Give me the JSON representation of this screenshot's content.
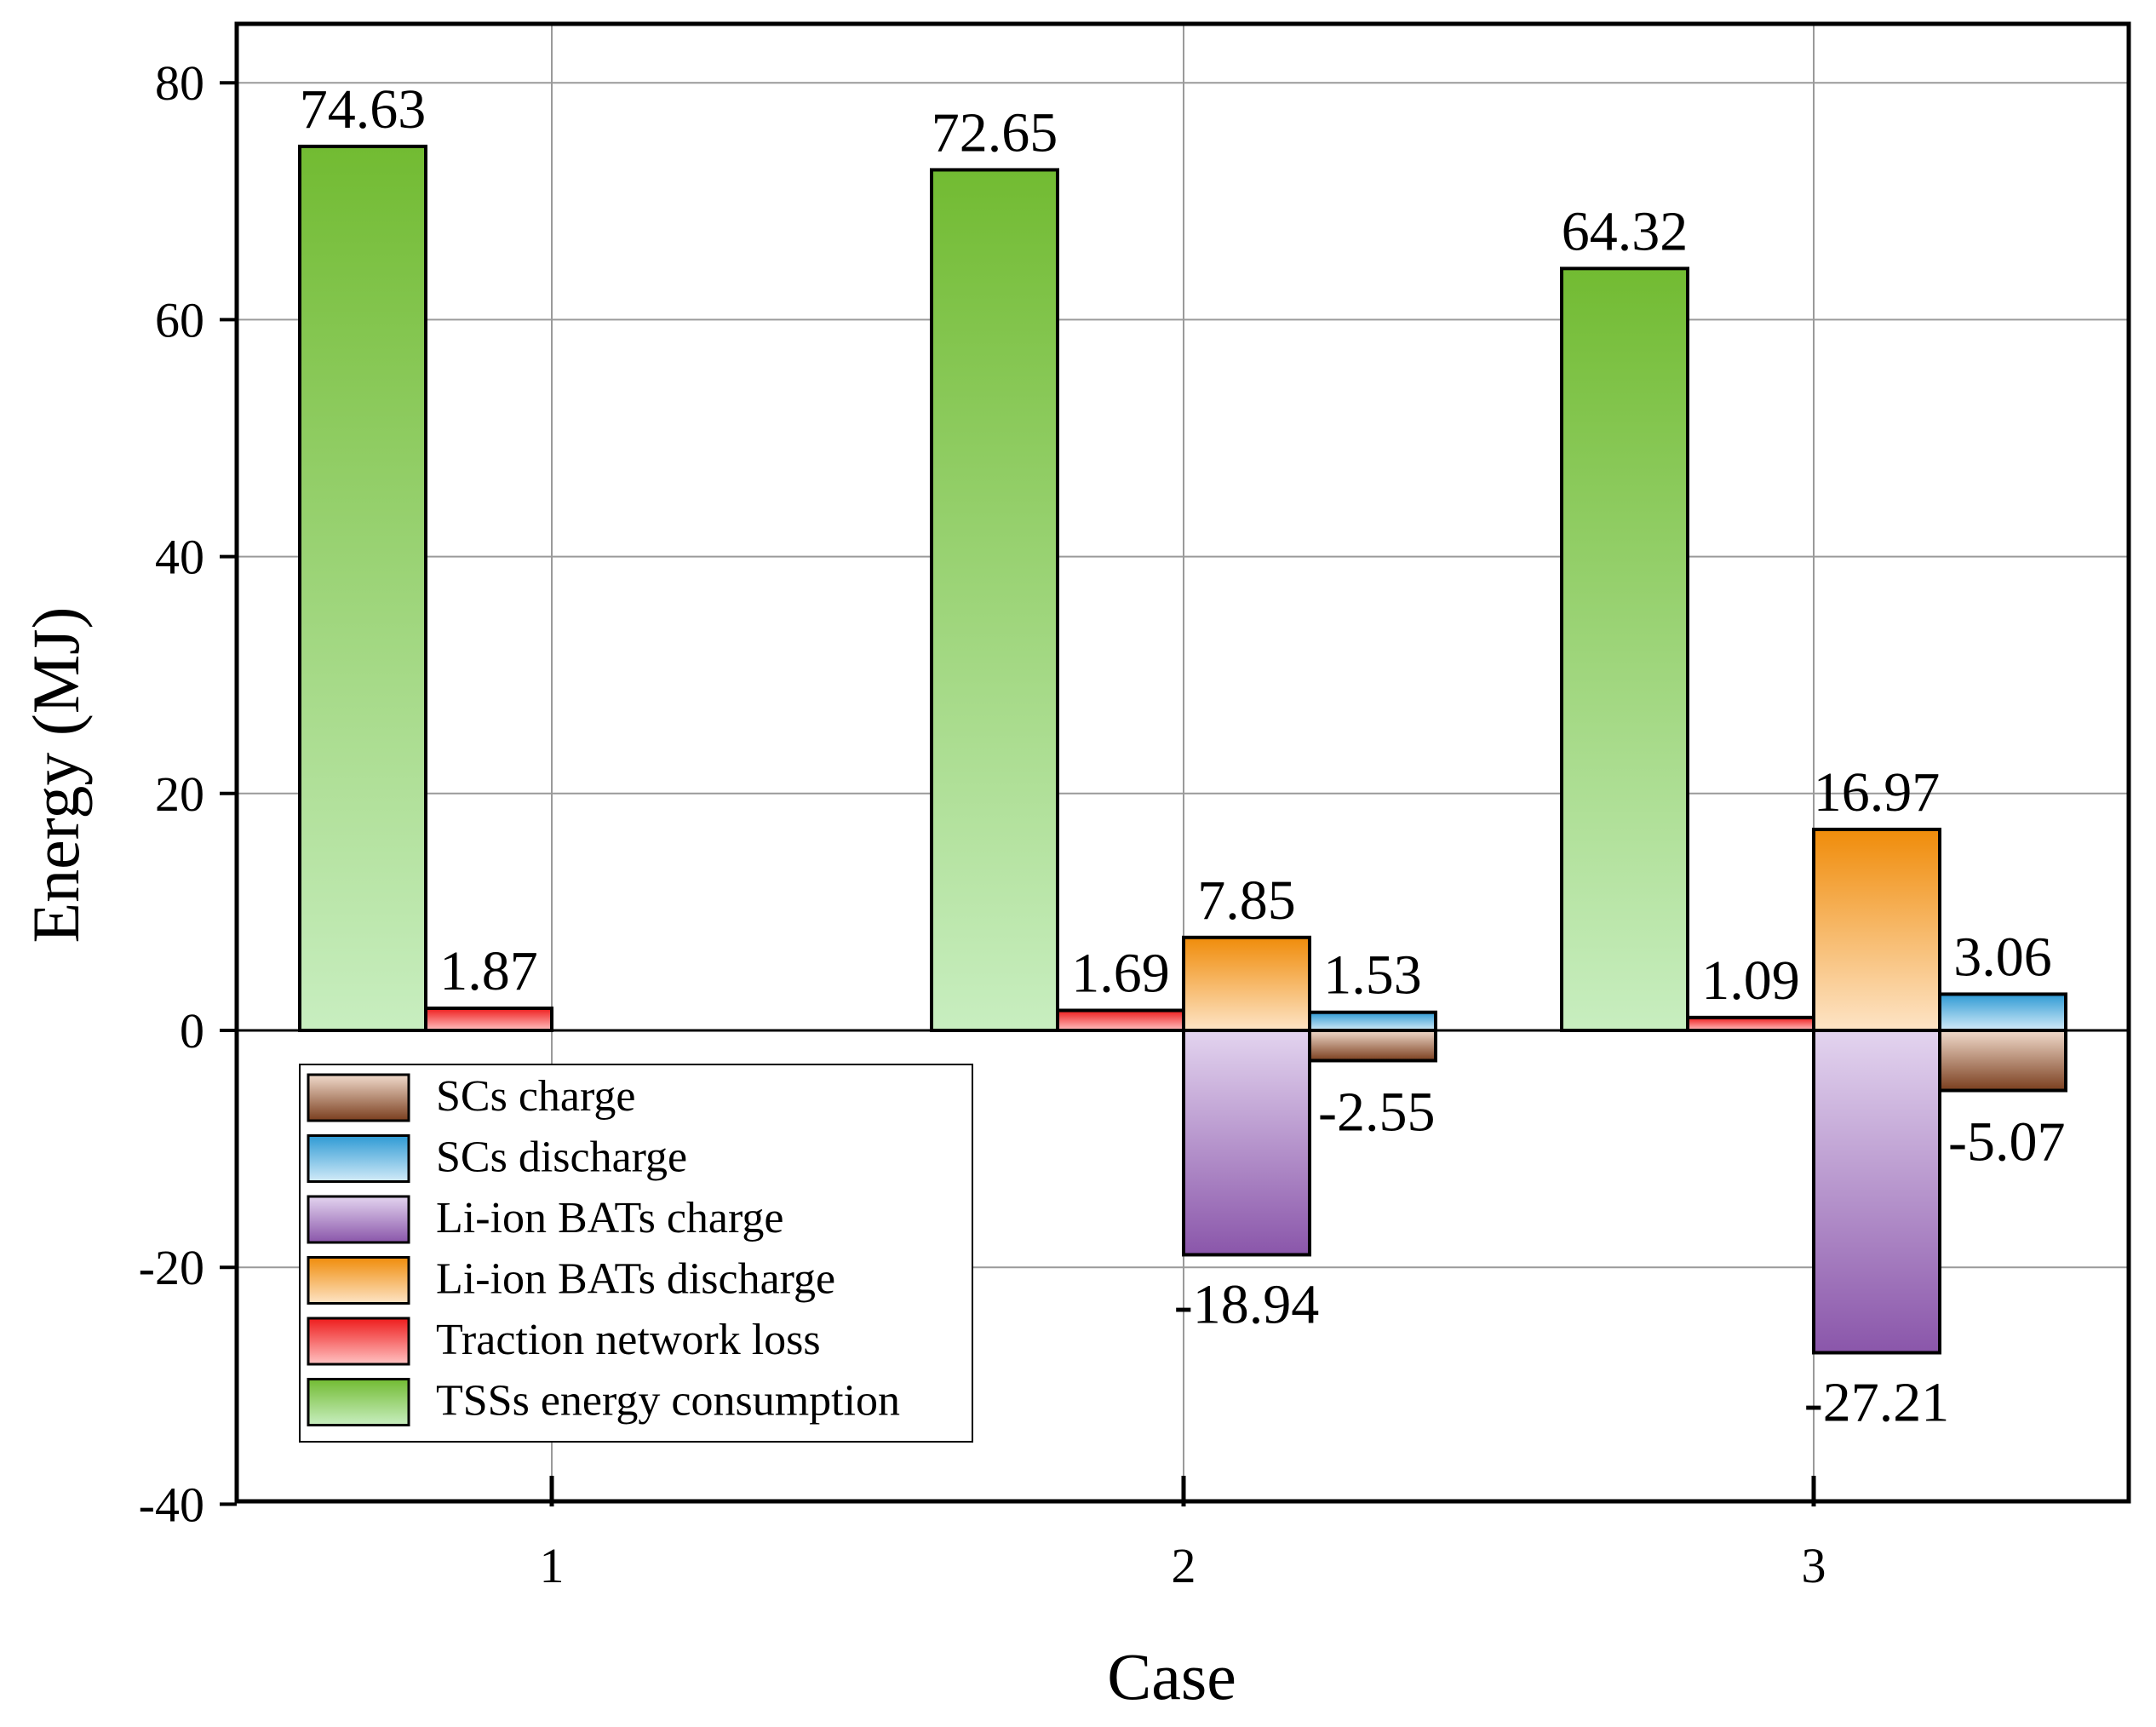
{
  "chart_data": {
    "type": "bar",
    "xlabel": "Case",
    "ylabel": "Energy (MJ)",
    "ylim": [
      -40,
      85
    ],
    "yticks": [
      -40,
      -20,
      0,
      20,
      40,
      60,
      80
    ],
    "categories": [
      "1",
      "2",
      "3"
    ],
    "grid": true,
    "legend_position": "lower-left",
    "series": [
      {
        "key": "tss",
        "name": "TSSs energy consumption",
        "values": [
          74.63,
          72.65,
          64.32
        ],
        "labels": [
          "74.63",
          "72.65",
          "64.32"
        ],
        "color_light": "#c8eec0",
        "color_dark": "#72bb32"
      },
      {
        "key": "loss",
        "name": "Traction network loss",
        "values": [
          1.87,
          1.69,
          1.09
        ],
        "labels": [
          "1.87",
          "1.69",
          "1.09"
        ],
        "color_light": "#ffc2c2",
        "color_dark": "#ee1c1c"
      },
      {
        "key": "bat_dis",
        "name": "Li-ion BATs discharge",
        "values": [
          null,
          7.85,
          16.97
        ],
        "labels": [
          null,
          "7.85",
          "16.97"
        ],
        "color_light": "#fde4c6",
        "color_dark": "#f08c0a"
      },
      {
        "key": "bat_chg",
        "name": "Li-ion BATs charge",
        "values": [
          null,
          -18.94,
          -27.21
        ],
        "labels": [
          null,
          "-18.94",
          "-27.21"
        ],
        "color_light": "#e3d4ef",
        "color_dark": "#8a56aa"
      },
      {
        "key": "sc_dis",
        "name": "SCs discharge",
        "values": [
          null,
          1.53,
          3.06
        ],
        "labels": [
          null,
          "1.53",
          "3.06"
        ],
        "color_light": "#d3ebf8",
        "color_dark": "#2e9ad4"
      },
      {
        "key": "sc_chg",
        "name": "SCs charge",
        "values": [
          null,
          -2.55,
          -5.07
        ],
        "labels": [
          null,
          "-2.55",
          "-5.07"
        ],
        "color_light": "#f1dbcc",
        "color_dark": "#7a3e1e"
      }
    ],
    "legend_order": [
      "sc_chg",
      "sc_dis",
      "bat_chg",
      "bat_dis",
      "loss",
      "tss"
    ]
  }
}
